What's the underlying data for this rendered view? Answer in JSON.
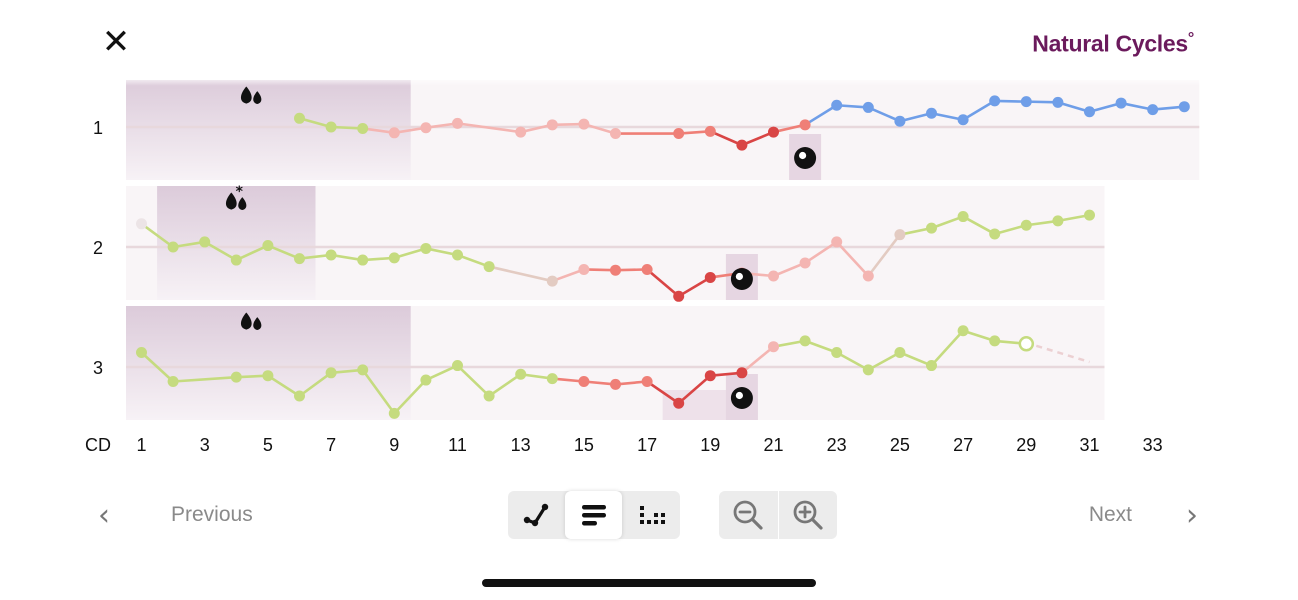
{
  "header": {
    "close_icon": "close-icon",
    "brand_name": "Natural Cycles",
    "brand_mark": "°"
  },
  "footer": {
    "previous_label": "Previous",
    "next_label": "Next",
    "view_modes": [
      {
        "icon": "line-chart-icon",
        "active": false
      },
      {
        "icon": "bars-view-icon",
        "active": true
      },
      {
        "icon": "dots-grid-icon",
        "active": false
      }
    ],
    "zoom_out_icon": "zoom-out-icon",
    "zoom_in_icon": "zoom-in-icon"
  },
  "colors": {
    "follicular": "#c5db7f",
    "low_fertility": "#f4b5b2",
    "high_fertility": "#ef7f77",
    "peak": "#d94545",
    "luteal_blue": "#6f9ee8",
    "period_band": "#e2d2e0",
    "panel_bg": "#f9f5f7"
  },
  "chart_data": {
    "type": "line",
    "x_axis": {
      "prefix": "CD",
      "ticks": [
        1,
        3,
        5,
        7,
        9,
        11,
        13,
        15,
        17,
        19,
        21,
        23,
        25,
        27,
        29,
        31,
        33
      ]
    },
    "cycles": [
      {
        "label": "1",
        "length": 34,
        "period_days": [
          1,
          8
        ],
        "period_icon": "period-drops-icon",
        "ovulation_day": 22,
        "points": [
          {
            "day": 6,
            "dev": 6,
            "c": "green"
          },
          {
            "day": 7,
            "dev": 0,
            "c": "green"
          },
          {
            "day": 8,
            "dev": -1,
            "c": "green"
          },
          {
            "day": 9,
            "dev": -4,
            "c": "pink"
          },
          {
            "day": 10,
            "dev": -0.5,
            "c": "pink"
          },
          {
            "day": 11,
            "dev": 2.5,
            "c": "pink"
          },
          {
            "day": 13,
            "dev": -3.5,
            "c": "pink"
          },
          {
            "day": 14,
            "dev": 1.5,
            "c": "pink"
          },
          {
            "day": 15,
            "dev": 2,
            "c": "pink"
          },
          {
            "day": 16,
            "dev": -4.5,
            "c": "pink"
          },
          {
            "day": 18,
            "dev": -4.5,
            "c": "red"
          },
          {
            "day": 19,
            "dev": -3,
            "c": "red"
          },
          {
            "day": 20,
            "dev": -12.5,
            "c": "dred"
          },
          {
            "day": 21,
            "dev": -3.5,
            "c": "dred"
          },
          {
            "day": 22,
            "dev": 1.5,
            "c": "red"
          },
          {
            "day": 23,
            "dev": 15,
            "c": "blue"
          },
          {
            "day": 24,
            "dev": 13.5,
            "c": "blue"
          },
          {
            "day": 25,
            "dev": 4,
            "c": "blue"
          },
          {
            "day": 26,
            "dev": 9.5,
            "c": "blue"
          },
          {
            "day": 27,
            "dev": 5,
            "c": "blue"
          },
          {
            "day": 28,
            "dev": 18,
            "c": "blue"
          },
          {
            "day": 29,
            "dev": 17.5,
            "c": "blue"
          },
          {
            "day": 30,
            "dev": 17,
            "c": "blue"
          },
          {
            "day": 31,
            "dev": 10.5,
            "c": "blue"
          },
          {
            "day": 32,
            "dev": 16.5,
            "c": "blue"
          },
          {
            "day": 33,
            "dev": 12,
            "c": "blue"
          },
          {
            "day": 34,
            "dev": 14,
            "c": "blue"
          }
        ]
      },
      {
        "label": "2",
        "length": 31,
        "period_days": [
          2,
          6
        ],
        "period_icon": "period-drops-asterisk-icon",
        "ovulation_day": 20,
        "points": [
          {
            "day": 1,
            "dev": 16,
            "c": "faint"
          },
          {
            "day": 2,
            "dev": 0,
            "c": "green"
          },
          {
            "day": 3,
            "dev": 3.5,
            "c": "green"
          },
          {
            "day": 4,
            "dev": -9,
            "c": "green"
          },
          {
            "day": 5,
            "dev": 1,
            "c": "green"
          },
          {
            "day": 6,
            "dev": -8,
            "c": "green"
          },
          {
            "day": 7,
            "dev": -5.5,
            "c": "green"
          },
          {
            "day": 8,
            "dev": -9,
            "c": "green"
          },
          {
            "day": 9,
            "dev": -7.5,
            "c": "green"
          },
          {
            "day": 10,
            "dev": -1,
            "c": "green"
          },
          {
            "day": 11,
            "dev": -5.5,
            "c": "green"
          },
          {
            "day": 12,
            "dev": -13.5,
            "c": "green"
          },
          {
            "day": 14,
            "dev": -23.5,
            "c": "beige"
          },
          {
            "day": 15,
            "dev": -15.5,
            "c": "pink"
          },
          {
            "day": 16,
            "dev": -16,
            "c": "red"
          },
          {
            "day": 17,
            "dev": -15.5,
            "c": "red"
          },
          {
            "day": 18,
            "dev": -34,
            "c": "dred"
          },
          {
            "day": 19,
            "dev": -21,
            "c": "dred"
          },
          {
            "day": 20,
            "dev": -18,
            "c": "red"
          },
          {
            "day": 21,
            "dev": -20,
            "c": "pink"
          },
          {
            "day": 22,
            "dev": -11,
            "c": "pink"
          },
          {
            "day": 23,
            "dev": 3.5,
            "c": "pink"
          },
          {
            "day": 24,
            "dev": -20,
            "c": "pink"
          },
          {
            "day": 25,
            "dev": 8.5,
            "c": "beige"
          },
          {
            "day": 26,
            "dev": 13,
            "c": "green"
          },
          {
            "day": 27,
            "dev": 21,
            "c": "green"
          },
          {
            "day": 28,
            "dev": 9,
            "c": "green"
          },
          {
            "day": 29,
            "dev": 15,
            "c": "green"
          },
          {
            "day": 30,
            "dev": 18,
            "c": "green"
          },
          {
            "day": 31,
            "dev": 22,
            "c": "green"
          }
        ]
      },
      {
        "label": "3",
        "length": 31,
        "period_days": [
          1,
          8
        ],
        "period_icon": "period-drops-icon",
        "ovulation_day": 20,
        "fertile_window_days": [
          18,
          21
        ],
        "points": [
          {
            "day": 1,
            "dev": 10,
            "c": "green"
          },
          {
            "day": 2,
            "dev": -10,
            "c": "green"
          },
          {
            "day": 4,
            "dev": -7,
            "c": "green"
          },
          {
            "day": 5,
            "dev": -6,
            "c": "green"
          },
          {
            "day": 6,
            "dev": -20,
            "c": "green"
          },
          {
            "day": 7,
            "dev": -4,
            "c": "green"
          },
          {
            "day": 8,
            "dev": -2,
            "c": "green"
          },
          {
            "day": 9,
            "dev": -32,
            "c": "green"
          },
          {
            "day": 10,
            "dev": -9,
            "c": "green"
          },
          {
            "day": 11,
            "dev": 1,
            "c": "green"
          },
          {
            "day": 12,
            "dev": -20,
            "c": "green"
          },
          {
            "day": 13,
            "dev": -5,
            "c": "green"
          },
          {
            "day": 14,
            "dev": -8,
            "c": "green"
          },
          {
            "day": 15,
            "dev": -10,
            "c": "red"
          },
          {
            "day": 16,
            "dev": -12,
            "c": "red"
          },
          {
            "day": 17,
            "dev": -10,
            "c": "red"
          },
          {
            "day": 18,
            "dev": -25,
            "c": "dred"
          },
          {
            "day": 19,
            "dev": -6,
            "c": "dred"
          },
          {
            "day": 20,
            "dev": -4,
            "c": "dred"
          },
          {
            "day": 21,
            "dev": 14,
            "c": "pink"
          },
          {
            "day": 22,
            "dev": 18,
            "c": "green"
          },
          {
            "day": 23,
            "dev": 10,
            "c": "green"
          },
          {
            "day": 24,
            "dev": -2,
            "c": "green"
          },
          {
            "day": 25,
            "dev": 10,
            "c": "green"
          },
          {
            "day": 26,
            "dev": 1,
            "c": "green"
          },
          {
            "day": 27,
            "dev": 25,
            "c": "green"
          },
          {
            "day": 28,
            "dev": 18,
            "c": "green"
          },
          {
            "day": 29,
            "dev": 16,
            "c": "open"
          }
        ],
        "predicted_tail": true
      }
    ]
  }
}
